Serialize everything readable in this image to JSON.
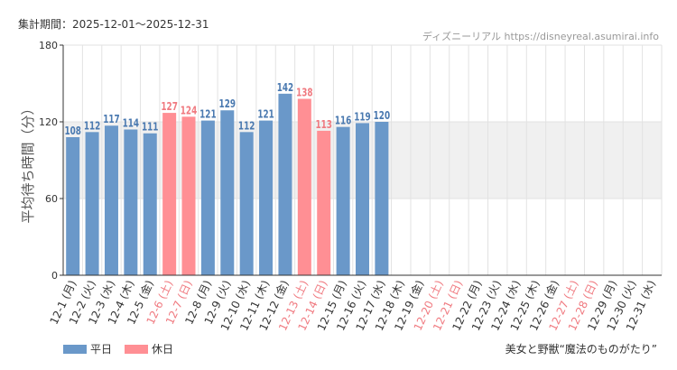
{
  "header": {
    "period": "集計期間：2025-12-01～2025-12-31",
    "site": "ディズニーリアル https://disneyreal.asumirai.info"
  },
  "footer": {
    "attraction": "美女と野獣“魔法のものがたり”"
  },
  "colors": {
    "weekday": "#6a98c9",
    "holiday": "#ff8f94",
    "weekday_label": "#4a79b0",
    "holiday_label": "#f07a80",
    "band": "#f0f0f0",
    "grid": "#e2e2e2"
  },
  "chart_data": {
    "type": "bar",
    "ylabel": "平均待ち時間（分）",
    "ylim": [
      0,
      180
    ],
    "yticks": [
      "0",
      "60",
      "120",
      "180"
    ],
    "shaded_band": [
      60,
      120
    ],
    "categories": [
      "12-1 (月)",
      "12-2 (火)",
      "12-3 (水)",
      "12-4 (木)",
      "12-5 (金)",
      "12-6 (土)",
      "12-7 (日)",
      "12-8 (月)",
      "12-9 (火)",
      "12-10 (水)",
      "12-11 (木)",
      "12-12 (金)",
      "12-13 (土)",
      "12-14 (日)",
      "12-15 (月)",
      "12-16 (火)",
      "12-17 (水)",
      "12-18 (木)",
      "12-19 (金)",
      "12-20 (土)",
      "12-21 (日)",
      "12-22 (月)",
      "12-23 (火)",
      "12-24 (水)",
      "12-25 (木)",
      "12-26 (金)",
      "12-27 (土)",
      "12-28 (日)",
      "12-29 (月)",
      "12-30 (火)",
      "12-31 (水)"
    ],
    "values": [
      108,
      112,
      117,
      114,
      111,
      127,
      124,
      121,
      129,
      112,
      121,
      142,
      138,
      113,
      116,
      119,
      120,
      null,
      null,
      null,
      null,
      null,
      null,
      null,
      null,
      null,
      null,
      null,
      null,
      null,
      null
    ],
    "holiday": [
      false,
      false,
      false,
      false,
      false,
      true,
      true,
      false,
      false,
      false,
      false,
      false,
      true,
      true,
      false,
      false,
      false,
      false,
      false,
      true,
      true,
      false,
      false,
      false,
      false,
      false,
      true,
      true,
      false,
      false,
      false
    ],
    "legend": [
      {
        "name": "平日",
        "type": "weekday"
      },
      {
        "name": "休日",
        "type": "holiday"
      }
    ],
    "legend_position": "bottom-left"
  }
}
